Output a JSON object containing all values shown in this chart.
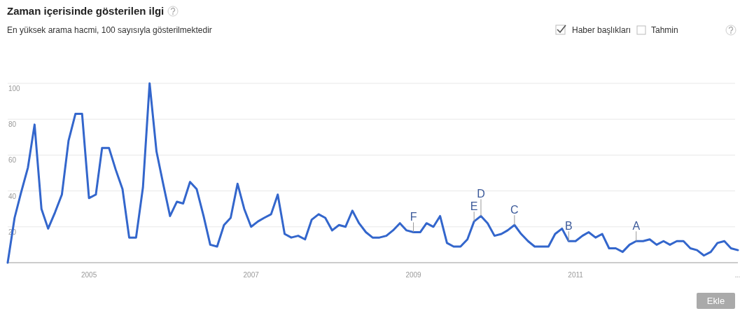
{
  "chart_data": {
    "type": "line",
    "title": "Zaman içerisinde gösterilen ilgi",
    "subtitle": "En yüksek arama hacmi, 100 sayısıyla gösterilmektedir",
    "x": [
      "2004-01",
      "2004-02",
      "2004-03",
      "2004-04",
      "2004-05",
      "2004-06",
      "2004-07",
      "2004-08",
      "2004-09",
      "2004-10",
      "2004-11",
      "2004-12",
      "2005-01",
      "2005-02",
      "2005-03",
      "2005-04",
      "2005-05",
      "2005-06",
      "2005-07",
      "2005-08",
      "2005-09",
      "2005-10",
      "2005-11",
      "2005-12",
      "2006-01",
      "2006-02",
      "2006-03",
      "2006-04",
      "2006-05",
      "2006-06",
      "2006-07",
      "2006-08",
      "2006-09",
      "2006-10",
      "2006-11",
      "2006-12",
      "2007-01",
      "2007-02",
      "2007-03",
      "2007-04",
      "2007-05",
      "2007-06",
      "2007-07",
      "2007-08",
      "2007-09",
      "2007-10",
      "2007-11",
      "2007-12",
      "2008-01",
      "2008-02",
      "2008-03",
      "2008-04",
      "2008-05",
      "2008-06",
      "2008-07",
      "2008-08",
      "2008-09",
      "2008-10",
      "2008-11",
      "2008-12",
      "2009-01",
      "2009-02",
      "2009-03",
      "2009-04",
      "2009-05",
      "2009-06",
      "2009-07",
      "2009-08",
      "2009-09",
      "2009-10",
      "2009-11",
      "2009-12",
      "2010-01",
      "2010-02",
      "2010-03",
      "2010-04",
      "2010-05",
      "2010-06",
      "2010-07",
      "2010-08",
      "2010-09",
      "2010-10",
      "2010-11",
      "2010-12",
      "2011-01",
      "2011-02",
      "2011-03",
      "2011-04",
      "2011-05",
      "2011-06",
      "2011-07",
      "2011-08",
      "2011-09",
      "2011-10",
      "2011-11",
      "2011-12",
      "2012-01",
      "2012-02",
      "2012-03",
      "2012-04",
      "2012-05",
      "2012-06",
      "2012-07",
      "2012-08",
      "2012-09",
      "2012-10",
      "2012-11",
      "2012-12",
      "2013-01"
    ],
    "series": [
      {
        "color": "#3366cc",
        "values": [
          0,
          25,
          39,
          53,
          77,
          30,
          19,
          28,
          38,
          68,
          83,
          83,
          36,
          38,
          64,
          64,
          52,
          41,
          14,
          14,
          42,
          100,
          62,
          44,
          26,
          34,
          33,
          45,
          41,
          26,
          10,
          9,
          21,
          25,
          44,
          30,
          20,
          23,
          25,
          27,
          38,
          16,
          14,
          15,
          13,
          24,
          27,
          25,
          18,
          21,
          20,
          29,
          22,
          17,
          14,
          14,
          15,
          18,
          22,
          18,
          17,
          17,
          22,
          20,
          26,
          11,
          9,
          9,
          13,
          23,
          26,
          22,
          15,
          16,
          18,
          21,
          16,
          12,
          9,
          9,
          9,
          16,
          19,
          12,
          12,
          15,
          17,
          14,
          16,
          8,
          8,
          6,
          10,
          12,
          12,
          13,
          10,
          12,
          10,
          12,
          12,
          8,
          7,
          4,
          6,
          11,
          12,
          8,
          7
        ]
      }
    ],
    "xlim": [
      "2004-01",
      "2013-01"
    ],
    "xticks": [
      "2005",
      "2007",
      "2009",
      "2011",
      {
        "value": "2013",
        "label": "..."
      }
    ],
    "ylim": [
      0,
      100
    ],
    "yticks": [
      20,
      40,
      60,
      80,
      100
    ],
    "grid": "y",
    "marker": "none",
    "line_style": "solid",
    "annotations": [
      {
        "text": "F",
        "x": "2009-01",
        "y": 17
      },
      {
        "text": "E",
        "x": "2009-10",
        "y": 23
      },
      {
        "text": "D",
        "x": "2009-11",
        "y": 26
      },
      {
        "text": "C",
        "x": "2010-04",
        "y": 21
      },
      {
        "text": "B",
        "x": "2010-12",
        "y": 12
      },
      {
        "text": "A",
        "x": "2011-10",
        "y": 12
      },
      "Haber başlıkları",
      "Tahmin",
      "Ekle"
    ]
  }
}
